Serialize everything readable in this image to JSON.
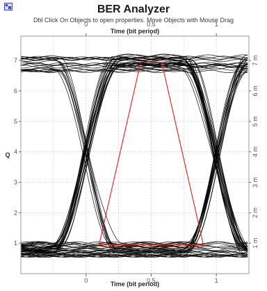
{
  "window": {
    "title": "BER Analyzer",
    "hint": "Dbl Click On Objects to open properties.  Move Objects with Mouse Drag"
  },
  "chart_data": {
    "type": "line",
    "title": "BER Analyzer",
    "xlabel_top": "Time (bit period)",
    "xlabel_bottom": "Time (bit period)",
    "ylabel": "Q",
    "xlim": [
      -0.5,
      1.25
    ],
    "ylim": [
      0,
      7.8
    ],
    "x_ticks": [
      0,
      0.5,
      1
    ],
    "x_tick_labels": [
      "0",
      "0.5",
      "1"
    ],
    "y_ticks_left": [
      1,
      2,
      3,
      4,
      5,
      6,
      7
    ],
    "y_tick_labels_left": [
      "1",
      "2",
      "3",
      "4",
      "5",
      "6",
      "7"
    ],
    "y_ticks_right": [
      1,
      2,
      3,
      4,
      5,
      6,
      7
    ],
    "y_tick_labels_right": [
      "1 m",
      "2 m",
      "3 m",
      "4 m",
      "5 m",
      "6 m",
      "7 m"
    ],
    "grid": true,
    "series": [
      {
        "color": "#000000",
        "style": "eye diagram traces",
        "high_level": 6.9,
        "low_level": 0.8,
        "crossing_points": [
          0,
          1
        ],
        "crossing_level": 3.85
      },
      {
        "color": "#e0201a",
        "style": "eye mask",
        "points": [
          [
            0.1,
            0.95
          ],
          [
            0.42,
            6.95
          ],
          [
            0.58,
            6.95
          ],
          [
            0.9,
            0.95
          ]
        ]
      }
    ]
  },
  "colors": {
    "plot_background": "#ffffff",
    "grid": "#cfcfcf",
    "eye_trace": "#000000",
    "mask": "#e0201a",
    "frame": "#9a9a9a"
  }
}
